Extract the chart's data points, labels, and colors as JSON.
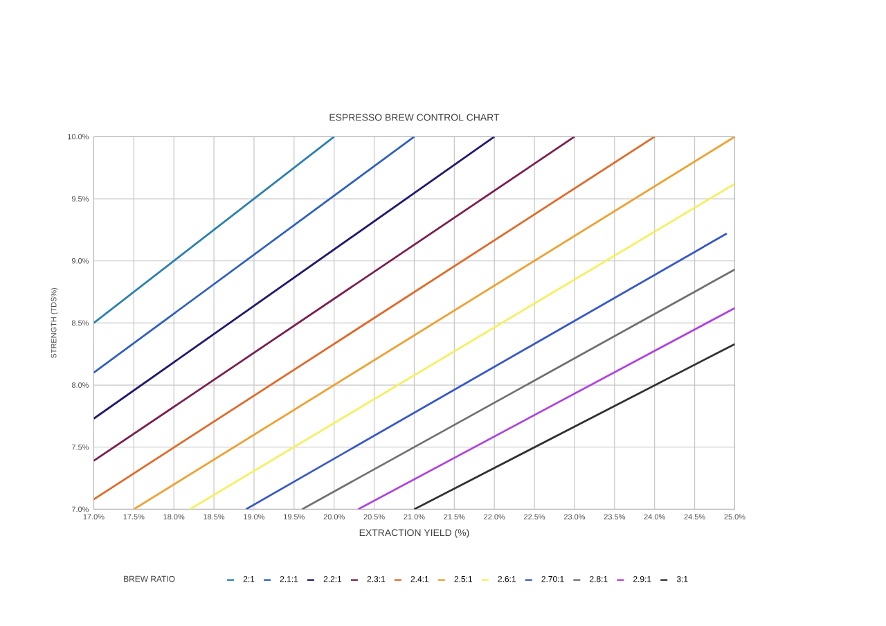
{
  "chart_data": {
    "type": "line",
    "title": "ESPRESSO BREW CONTROL CHART",
    "xlabel": "EXTRACTION YIELD (%)",
    "ylabel": "STRENGTH (TDS%)",
    "legend_title": "BREW RATIO",
    "legend": "bottom",
    "grid": true,
    "marker": "none",
    "line_style": "solid",
    "xlim": [
      17,
      25
    ],
    "ylim": [
      7,
      10
    ],
    "xticks": [
      {
        "value": 17,
        "label": "17.0%"
      },
      {
        "value": 17.5,
        "label": "17.5%"
      },
      {
        "value": 18,
        "label": "18.0%"
      },
      {
        "value": 18.5,
        "label": "18.5%"
      },
      {
        "value": 19,
        "label": "19.0%"
      },
      {
        "value": 19.5,
        "label": "19.5%"
      },
      {
        "value": 20,
        "label": "20.0%"
      },
      {
        "value": 20.5,
        "label": "20.5%"
      },
      {
        "value": 21,
        "label": "21.0%"
      },
      {
        "value": 21.5,
        "label": "21.5%"
      },
      {
        "value": 22,
        "label": "22.0%"
      },
      {
        "value": 22.5,
        "label": "22.5%"
      },
      {
        "value": 23,
        "label": "23.0%"
      },
      {
        "value": 23.5,
        "label": "23.5%"
      },
      {
        "value": 24,
        "label": "24.0%"
      },
      {
        "value": 24.5,
        "label": "24.5%"
      },
      {
        "value": 25,
        "label": "25.0%"
      }
    ],
    "yticks": [
      {
        "value": 7,
        "label": "7.0%"
      },
      {
        "value": 7.5,
        "label": "7.5%"
      },
      {
        "value": 8,
        "label": "8.0%"
      },
      {
        "value": 8.5,
        "label": "8.5%"
      },
      {
        "value": 9,
        "label": "9.0%"
      },
      {
        "value": 9.5,
        "label": "9.5%"
      },
      {
        "value": 10,
        "label": "10.0%"
      }
    ],
    "series": [
      {
        "name": "2:1",
        "color": "#2a7fb0",
        "x": [
          17,
          20
        ],
        "values": [
          8.5,
          10
        ]
      },
      {
        "name": "2.1:1",
        "color": "#2f5fc0",
        "x": [
          17,
          21
        ],
        "values": [
          8.1,
          10
        ]
      },
      {
        "name": "2.2:1",
        "color": "#1f1a6e",
        "x": [
          17,
          22
        ],
        "values": [
          7.73,
          10
        ]
      },
      {
        "name": "2.3:1",
        "color": "#7a1f4f",
        "x": [
          17,
          23
        ],
        "values": [
          7.39,
          10
        ]
      },
      {
        "name": "2.4:1",
        "color": "#e06a2a",
        "x": [
          17,
          24
        ],
        "values": [
          7.08,
          10
        ]
      },
      {
        "name": "2.5:1",
        "color": "#f0a030",
        "x": [
          17.5,
          25
        ],
        "values": [
          7,
          10
        ]
      },
      {
        "name": "2.6:1",
        "color": "#f5f060",
        "x": [
          18.2,
          25
        ],
        "values": [
          7,
          9.62
        ]
      },
      {
        "name": "2.70:1",
        "color": "#3858c8",
        "x": [
          18.9,
          24.9
        ],
        "values": [
          7,
          9.22
        ]
      },
      {
        "name": "2.8:1",
        "color": "#707070",
        "x": [
          19.6,
          25
        ],
        "values": [
          7,
          8.93
        ]
      },
      {
        "name": "2.9:1",
        "color": "#b040e0",
        "x": [
          20.3,
          25
        ],
        "values": [
          7,
          8.62
        ]
      },
      {
        "name": "3:1",
        "color": "#303030",
        "x": [
          21,
          25
        ],
        "values": [
          7,
          8.33
        ]
      }
    ]
  }
}
